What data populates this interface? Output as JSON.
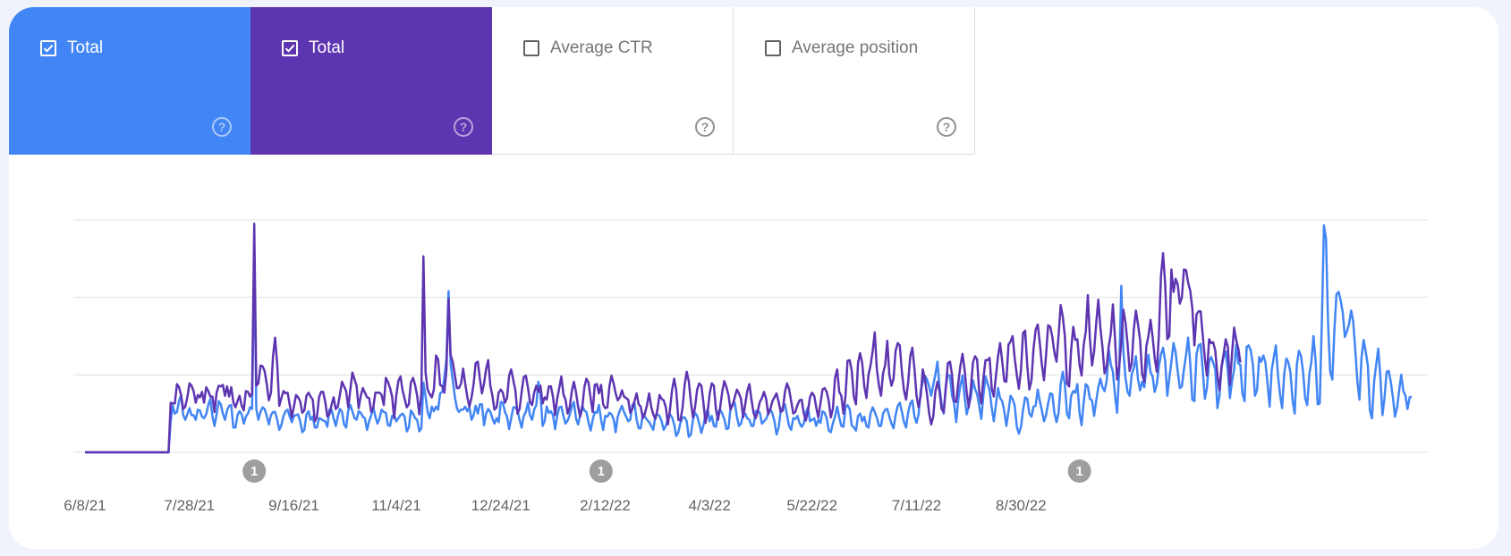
{
  "metrics": [
    {
      "label": "Total",
      "checked": true,
      "color": "#4285f4",
      "help": "?"
    },
    {
      "label": "Total",
      "checked": true,
      "color": "#5e35b1",
      "help": "?"
    },
    {
      "label": "Average CTR",
      "checked": false,
      "color": "#ffffff",
      "help": "?"
    },
    {
      "label": "Average position",
      "checked": false,
      "color": "#ffffff",
      "help": "?"
    }
  ],
  "chart_data": {
    "type": "line",
    "title": "",
    "xlabel": "",
    "ylabel": "",
    "x_start": "6/8/21",
    "x_ticks": [
      "6/8/21",
      "7/28/21",
      "9/16/21",
      "11/4/21",
      "12/24/21",
      "2/12/22",
      "4/3/22",
      "5/22/22",
      "7/11/22",
      "8/30/22"
    ],
    "ylim": [
      0,
      3
    ],
    "grid": true,
    "annotations": [
      {
        "date": "8/28/21",
        "label": "1"
      },
      {
        "date": "2/10/22",
        "label": "1"
      },
      {
        "date": "9/27/22",
        "label": "1"
      }
    ],
    "series": [
      {
        "color": "#4285f4",
        "values": [
          0,
          0,
          0,
          0,
          0,
          0,
          0,
          0,
          0,
          0,
          0,
          0,
          0,
          0,
          0,
          0,
          0,
          0,
          0,
          0,
          0,
          0,
          0,
          0,
          0,
          0,
          0,
          0,
          0,
          0,
          0,
          0,
          0,
          0,
          0,
          0,
          0,
          0,
          0,
          0,
          0,
          0.4,
          0.6,
          0.5,
          0.52,
          0.66,
          0.74,
          0.48,
          0.42,
          0.49,
          0.57,
          0.48,
          0.48,
          0.42,
          0.55,
          0.54,
          0.46,
          0.44,
          0.49,
          0.61,
          0.69,
          0.46,
          0.34,
          0.49,
          0.66,
          0.62,
          0.5,
          0.42,
          0.54,
          0.6,
          0.61,
          0.32,
          0.32,
          0.48,
          0.53,
          0.49,
          0.37,
          0.46,
          0.5,
          0.58,
          0.56,
          2.6,
          0.56,
          0.42,
          0.52,
          0.58,
          0.56,
          0.47,
          0.36,
          0.48,
          0.52,
          0.52,
          0.42,
          0.29,
          0.35,
          0.47,
          0.53,
          0.55,
          0.46,
          0.39,
          0.47,
          0.48,
          0.49,
          0.4,
          0.26,
          0.29,
          0.49,
          0.53,
          0.42,
          0.46,
          0.32,
          0.32,
          0.44,
          0.43,
          0.41,
          0.4,
          0.33,
          0.55,
          0.55,
          0.44,
          0.34,
          0.46,
          0.56,
          0.52,
          0.36,
          0.32,
          0.54,
          0.61,
          0.53,
          0.44,
          0.42,
          0.53,
          0.51,
          0.46,
          0.44,
          0.29,
          0.4,
          0.48,
          0.58,
          0.46,
          0.37,
          0.44,
          0.55,
          0.52,
          0.51,
          0.35,
          0.34,
          0.47,
          0.48,
          0.4,
          0.44,
          0.48,
          0.5,
          0.46,
          0.27,
          0.32,
          0.54,
          0.5,
          0.44,
          0.42,
          0.27,
          0.31,
          0.9,
          0.72,
          0.52,
          0.44,
          0.59,
          0.53,
          0.59,
          0.55,
          0.76,
          0.78,
          0.96,
          1.2,
          2.08,
          1.15,
          0.94,
          0.72,
          0.57,
          0.52,
          0.55,
          0.55,
          0.59,
          0.53,
          0.58,
          0.42,
          0.48,
          0.6,
          0.5,
          0.62,
          0.62,
          0.35,
          0.5,
          0.56,
          0.52,
          0.44,
          0.37,
          0.44,
          0.39,
          0.65,
          0.64,
          0.52,
          0.46,
          0.3,
          0.44,
          0.58,
          0.58,
          0.54,
          0.42,
          0.32,
          0.47,
          0.52,
          0.64,
          0.48,
          0.42,
          0.55,
          0.61,
          0.91,
          0.76,
          0.34,
          0.4,
          0.59,
          0.51,
          0.53,
          0.48,
          0.3,
          0.47,
          0.58,
          0.59,
          0.47,
          0.37,
          0.41,
          0.48,
          0.59,
          0.65,
          0.44,
          0.36,
          0.48,
          0.6,
          0.54,
          0.52,
          0.39,
          0.28,
          0.42,
          0.52,
          0.51,
          0.61,
          0.42,
          0.29,
          0.47,
          0.46,
          0.51,
          0.49,
          0.43,
          0.26,
          0.46,
          0.54,
          0.6,
          0.52,
          0.46,
          0.4,
          0.42,
          0.61,
          0.64,
          0.42,
          0.31,
          0.31,
          0.5,
          0.46,
          0.42,
          0.39,
          0.34,
          0.29,
          0.47,
          0.49,
          0.47,
          0.4,
          0.29,
          0.34,
          0.44,
          0.49,
          0.45,
          0.36,
          0.21,
          0.26,
          0.38,
          0.45,
          0.45,
          0.4,
          0.2,
          0.23,
          0.42,
          0.51,
          0.47,
          0.37,
          0.25,
          0.35,
          0.48,
          0.56,
          0.4,
          0.47,
          0.34,
          0.33,
          0.52,
          0.55,
          0.5,
          0.43,
          0.3,
          0.31,
          0.58,
          0.62,
          0.64,
          0.46,
          0.34,
          0.37,
          0.49,
          0.5,
          0.44,
          0.42,
          0.34,
          0.34,
          0.53,
          0.54,
          0.51,
          0.37,
          0.4,
          0.43,
          0.5,
          0.56,
          0.5,
          0.4,
          0.23,
          0.32,
          0.54,
          0.58,
          0.62,
          0.48,
          0.34,
          0.29,
          0.44,
          0.43,
          0.47,
          0.38,
          0.33,
          0.37,
          0.51,
          0.58,
          0.4,
          0.42,
          0.44,
          0.34,
          0.42,
          0.38,
          0.53,
          0.51,
          0.44,
          0.28,
          0.26,
          0.38,
          0.46,
          0.59,
          0.45,
          0.34,
          0.33,
          0.58,
          0.61,
          0.56,
          0.35,
          0.32,
          0.28,
          0.47,
          0.5,
          0.4,
          0.46,
          0.34,
          0.32,
          0.5,
          0.58,
          0.52,
          0.45,
          0.34,
          0.34,
          0.5,
          0.55,
          0.56,
          0.46,
          0.37,
          0.31,
          0.48,
          0.6,
          0.64,
          0.52,
          0.39,
          0.32,
          0.52,
          0.63,
          0.67,
          0.46,
          0.38,
          0.49,
          0.79,
          0.91,
          0.99,
          0.94,
          0.85,
          0.73,
          0.87,
          1.0,
          1.17,
          0.84,
          0.63,
          0.5,
          0.86,
          1.0,
          0.99,
          0.73,
          0.63,
          0.39,
          0.69,
          0.86,
          0.99,
          0.72,
          0.49,
          0.6,
          0.71,
          0.93,
          0.82,
          0.75,
          0.6,
          0.43,
          0.73,
          0.98,
          0.89,
          0.8,
          0.57,
          0.4,
          0.61,
          0.83,
          0.7,
          0.66,
          0.53,
          0.34,
          0.53,
          0.73,
          0.69,
          0.6,
          0.33,
          0.24,
          0.33,
          0.55,
          0.71,
          0.69,
          0.5,
          0.46,
          0.59,
          0.6,
          0.81,
          0.66,
          0.54,
          0.4,
          0.48,
          0.63,
          0.76,
          0.75,
          0.51,
          0.39,
          0.51,
          0.88,
          1.04,
          0.88,
          0.5,
          0.44,
          0.73,
          0.79,
          0.77,
          0.88,
          0.51,
          0.35,
          0.64,
          0.88,
          0.85,
          0.69,
          0.67,
          0.47,
          0.66,
          0.84,
          0.95,
          0.84,
          0.79,
          0.92,
          1.32,
          1.13,
          1.04,
          0.73,
          0.51,
          1.03,
          2.15,
          1.31,
          0.97,
          0.78,
          0.73,
          1.01,
          1.09,
          1.24,
          0.94,
          0.8,
          0.91,
          0.84,
          1.08,
          1.26,
          1.03,
          0.98,
          0.78,
          0.88,
          1.11,
          1.26,
          1.35,
          1.18,
          0.73,
          0.96,
          1.17,
          1.41,
          1.29,
          1.05,
          0.83,
          0.85,
          1.07,
          1.26,
          1.48,
          1.16,
          0.68,
          0.66,
          1.27,
          1.38,
          1.4,
          1.05,
          0.69,
          0.83,
          1.17,
          1.23,
          1.16,
          1.07,
          0.57,
          0.73,
          1.1,
          1.23,
          1.3,
          1.05,
          0.7,
          0.92,
          1.07,
          1.39,
          1.15,
          1.13,
          0.76,
          0.66,
          1.36,
          1.38,
          1.31,
          1.13,
          0.73,
          0.81,
          1.23,
          1.17,
          1.25,
          1.16,
          0.88,
          0.59,
          1.06,
          1.23,
          1.38,
          1.0,
          0.74,
          0.57,
          1.01,
          1.21,
          1.16,
          1.03,
          0.67,
          0.5,
          1.13,
          1.31,
          1.25,
          1.04,
          0.7,
          0.61,
          1.01,
          1.17,
          1.5,
          1.18,
          0.62,
          0.63,
          1.7,
          2.93,
          2.76,
          1.64,
          1.04,
          0.94,
          1.58,
          2.04,
          2.07,
          1.96,
          1.81,
          1.49,
          1.56,
          1.65,
          1.83,
          1.69,
          1.33,
          0.91,
          0.68,
          1.22,
          1.45,
          1.3,
          1.12,
          0.54,
          0.44,
          0.92,
          1.13,
          1.34,
          0.97,
          0.48,
          0.7,
          1.04,
          1.05,
          0.91,
          0.71,
          0.46,
          0.58,
          0.8,
          1.0,
          0.79,
          0.73,
          0.56,
          0.71,
          0.72
        ]
      },
      {
        "color": "#5e35b1",
        "values": [
          0,
          0,
          0,
          0,
          0,
          0,
          0,
          0,
          0,
          0,
          0,
          0,
          0,
          0,
          0,
          0,
          0,
          0,
          0,
          0,
          0,
          0,
          0,
          0,
          0,
          0,
          0,
          0,
          0,
          0,
          0,
          0,
          0,
          0,
          0,
          0,
          0,
          0,
          0,
          0,
          0,
          0.64,
          0.63,
          0.63,
          0.88,
          0.84,
          0.74,
          0.56,
          0.59,
          0.71,
          0.89,
          0.86,
          0.79,
          0.64,
          0.74,
          0.71,
          0.78,
          0.64,
          0.84,
          0.79,
          0.72,
          0.72,
          0.52,
          0.77,
          0.86,
          0.85,
          0.87,
          0.73,
          0.85,
          0.72,
          0.84,
          0.65,
          0.58,
          0.66,
          0.73,
          0.6,
          0.54,
          0.79,
          0.78,
          0.72,
          0.76,
          2.95,
          0.86,
          0.89,
          1.12,
          1.11,
          1.05,
          0.88,
          0.67,
          0.77,
          1.24,
          1.48,
          1.13,
          0.6,
          0.7,
          0.79,
          0.76,
          0.77,
          0.61,
          0.45,
          0.59,
          0.74,
          0.71,
          0.66,
          0.51,
          0.54,
          0.73,
          0.77,
          0.72,
          0.68,
          0.4,
          0.45,
          0.71,
          0.78,
          0.78,
          0.65,
          0.46,
          0.49,
          0.61,
          0.71,
          0.56,
          0.59,
          0.74,
          0.91,
          0.85,
          0.79,
          0.58,
          0.81,
          1.03,
          0.94,
          0.86,
          0.57,
          0.73,
          0.83,
          0.77,
          0.71,
          0.7,
          0.52,
          0.58,
          0.77,
          0.77,
          0.77,
          0.74,
          0.61,
          0.96,
          0.91,
          0.83,
          0.72,
          0.44,
          0.74,
          0.92,
          0.98,
          0.8,
          0.69,
          0.58,
          0.62,
          0.9,
          0.96,
          0.87,
          0.73,
          0.49,
          0.76,
          2.53,
          1.03,
          0.81,
          0.75,
          0.71,
          0.81,
          1.25,
          1.2,
          0.87,
          0.85,
          0.77,
          1.06,
          1.98,
          1.26,
          1.17,
          1.0,
          0.83,
          0.83,
          0.89,
          1.08,
          0.89,
          0.71,
          0.59,
          0.71,
          0.88,
          1.15,
          1.17,
          0.95,
          0.76,
          0.89,
          1.08,
          1.19,
          0.86,
          0.73,
          0.55,
          0.58,
          0.77,
          0.81,
          0.77,
          0.64,
          0.7,
          0.99,
          1.07,
          0.93,
          0.8,
          0.5,
          0.56,
          0.78,
          0.97,
          0.99,
          0.84,
          0.65,
          0.61,
          0.77,
          0.86,
          0.78,
          0.86,
          0.63,
          0.71,
          0.68,
          0.85,
          0.85,
          0.72,
          0.48,
          0.69,
          0.83,
          0.98,
          0.75,
          0.68,
          0.5,
          0.58,
          0.79,
          0.91,
          0.78,
          0.59,
          0.46,
          0.57,
          0.84,
          0.95,
          0.9,
          0.7,
          0.52,
          0.87,
          0.88,
          0.76,
          0.87,
          0.62,
          0.57,
          0.58,
          0.85,
          0.99,
          0.89,
          0.76,
          0.67,
          0.71,
          0.8,
          0.72,
          0.7,
          0.68,
          0.51,
          0.56,
          0.66,
          0.76,
          0.62,
          0.59,
          0.44,
          0.5,
          0.61,
          0.76,
          0.59,
          0.49,
          0.43,
          0.55,
          0.74,
          0.69,
          0.67,
          0.58,
          0.36,
          0.55,
          0.81,
          0.95,
          0.8,
          0.42,
          0.41,
          0.57,
          0.87,
          1.04,
          0.92,
          0.65,
          0.45,
          0.58,
          0.81,
          0.89,
          0.86,
          0.64,
          0.38,
          0.52,
          0.76,
          0.89,
          0.86,
          0.55,
          0.42,
          0.58,
          0.78,
          0.92,
          0.84,
          0.74,
          0.55,
          0.61,
          0.71,
          0.81,
          0.76,
          0.69,
          0.45,
          0.62,
          0.79,
          0.88,
          0.68,
          0.51,
          0.44,
          0.53,
          0.65,
          0.7,
          0.78,
          0.69,
          0.49,
          0.56,
          0.66,
          0.71,
          0.76,
          0.65,
          0.52,
          0.54,
          0.78,
          0.89,
          0.82,
          0.66,
          0.5,
          0.52,
          0.61,
          0.67,
          0.68,
          0.51,
          0.41,
          0.53,
          0.71,
          0.77,
          0.73,
          0.58,
          0.45,
          0.63,
          0.81,
          0.83,
          0.78,
          0.66,
          0.45,
          0.57,
          0.96,
          1.07,
          0.78,
          0.73,
          0.5,
          0.73,
          1.18,
          1.19,
          1.05,
          0.72,
          0.62,
          1.15,
          1.28,
          1.15,
          0.85,
          0.7,
          1.0,
          1.12,
          1.31,
          1.55,
          1.08,
          0.86,
          0.73,
          1.02,
          1.13,
          1.44,
          1.0,
          0.86,
          0.95,
          1.31,
          1.41,
          1.38,
          1.03,
          0.8,
          0.68,
          0.91,
          1.24,
          1.35,
          1.08,
          0.73,
          0.58,
          0.73,
          1.07,
          0.95,
          0.75,
          0.51,
          0.36,
          0.46,
          0.78,
          0.91,
          0.79,
          0.56,
          0.52,
          0.82,
          1.15,
          1.17,
          1.0,
          0.66,
          0.65,
          0.9,
          1.11,
          1.27,
          1.07,
          0.77,
          0.58,
          0.82,
          1.16,
          1.24,
          1.2,
          0.78,
          0.63,
          0.95,
          1.19,
          1.19,
          1.22,
          0.82,
          0.72,
          0.98,
          1.24,
          1.41,
          1.17,
          0.92,
          0.91,
          1.39,
          1.43,
          1.5,
          1.21,
          1.0,
          0.82,
          1.07,
          1.54,
          1.57,
          1.12,
          0.81,
          0.93,
          1.34,
          1.58,
          1.65,
          1.41,
          1.13,
          0.93,
          1.26,
          1.64,
          1.62,
          1.49,
          1.29,
          1.17,
          1.51,
          1.9,
          1.75,
          1.5,
          0.89,
          0.85,
          1.32,
          1.62,
          1.45,
          1.46,
          1.13,
          0.99,
          1.38,
          1.56,
          2.03,
          1.47,
          1.12,
          1.3,
          1.66,
          1.97,
          1.61,
          1.35,
          1.02,
          1.11,
          1.37,
          1.54,
          1.91,
          1.46,
          0.94,
          1.1,
          1.43,
          1.84,
          1.68,
          1.4,
          1.05,
          1.15,
          1.59,
          1.83,
          1.65,
          1.45,
          1.01,
          0.91,
          1.37,
          1.5,
          1.71,
          1.49,
          1.22,
          1.04,
          1.52,
          2.27,
          2.57,
          2.18,
          1.46,
          1.5,
          2.36,
          2.07,
          2.24,
          2.17,
          1.92,
          2.0,
          2.36,
          2.35,
          2.19,
          2.09,
          1.86,
          1.38,
          1.78,
          1.82,
          1.82,
          1.5,
          1.21,
          0.99,
          1.46,
          1.41,
          1.42,
          1.31,
          1.0,
          0.8,
          1.11,
          1.27,
          1.46,
          1.36,
          0.87,
          1.28,
          1.61,
          1.45,
          1.34,
          1.16
        ]
      }
    ]
  }
}
